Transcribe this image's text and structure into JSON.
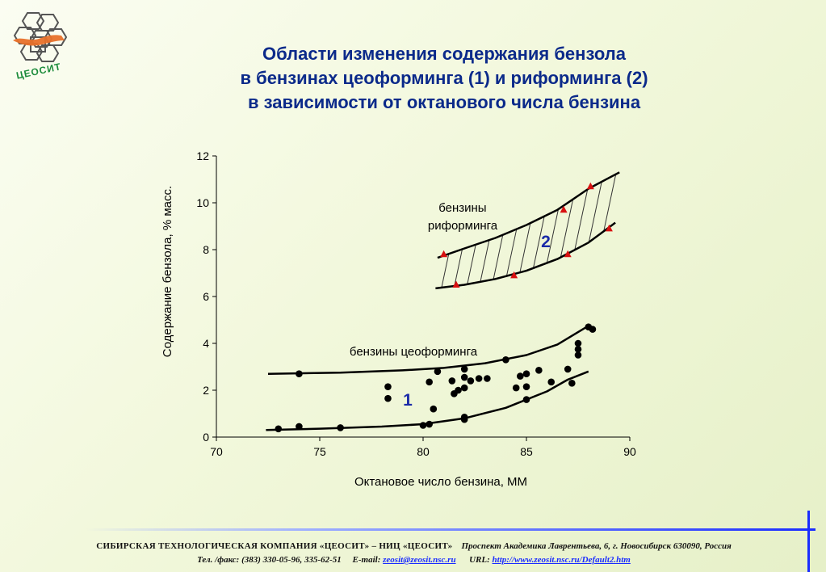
{
  "logo": {
    "text": "ЦЕОСИТ"
  },
  "title": {
    "line1": "Области изменения содержания бензола",
    "line2": "в бензинах цеоформинга (1) и риформинга (2)",
    "line3": "в зависимости от октанового числа  бензина"
  },
  "colors": {
    "title": "#0b2a8a",
    "region_label": "#1a2aa8",
    "triangle": "#d81010",
    "link": "#1a2cff"
  },
  "chart_data": {
    "type": "scatter",
    "xlabel": "Октановое число бензина, ММ",
    "ylabel": "Содержание бензола, % масс.",
    "xlim": [
      70,
      90
    ],
    "ylim": [
      0,
      12
    ],
    "xticks": [
      70,
      75,
      80,
      85,
      90
    ],
    "yticks": [
      0,
      2,
      4,
      6,
      8,
      10,
      12
    ],
    "grid": false,
    "annotations": {
      "reforming": "бензины\nриформинга",
      "zeoforming": "бензины цеоформинга",
      "region1": "1",
      "region2": "2"
    },
    "series": [
      {
        "marker": "circle",
        "points": [
          [
            73,
            0.35
          ],
          [
            74,
            0.45
          ],
          [
            74,
            2.7
          ],
          [
            76,
            0.4
          ],
          [
            78.3,
            2.15
          ],
          [
            78.3,
            1.65
          ],
          [
            80,
            0.5
          ],
          [
            80.3,
            0.55
          ],
          [
            80.3,
            2.35
          ],
          [
            80.5,
            1.2
          ],
          [
            80.7,
            2.8
          ],
          [
            81.4,
            2.4
          ],
          [
            81.5,
            1.85
          ],
          [
            81.7,
            2.0
          ],
          [
            82,
            2.1
          ],
          [
            82,
            2.55
          ],
          [
            82,
            2.9
          ],
          [
            82,
            0.75
          ],
          [
            82,
            0.85
          ],
          [
            82.3,
            2.4
          ],
          [
            82.7,
            2.5
          ],
          [
            83.1,
            2.5
          ],
          [
            84,
            3.3
          ],
          [
            84.5,
            2.1
          ],
          [
            84.7,
            2.6
          ],
          [
            85,
            2.7
          ],
          [
            85,
            2.15
          ],
          [
            85,
            1.6
          ],
          [
            85.6,
            2.85
          ],
          [
            86.2,
            2.35
          ],
          [
            87,
            2.9
          ],
          [
            87.2,
            2.3
          ],
          [
            87.5,
            4.0
          ],
          [
            87.5,
            3.75
          ],
          [
            87.5,
            3.5
          ],
          [
            88,
            4.7
          ],
          [
            88.2,
            4.6
          ]
        ]
      },
      {
        "marker": "triangle",
        "points": [
          [
            81,
            7.8
          ],
          [
            81.6,
            6.5
          ],
          [
            84.4,
            6.9
          ],
          [
            86.8,
            9.7
          ],
          [
            87,
            7.8
          ],
          [
            88.1,
            10.7
          ],
          [
            89,
            8.9
          ]
        ]
      }
    ],
    "curves": [
      {
        "band": "1-upper",
        "points": [
          [
            72.5,
            2.7
          ],
          [
            76,
            2.75
          ],
          [
            79,
            2.85
          ],
          [
            81,
            2.95
          ],
          [
            83,
            3.15
          ],
          [
            85,
            3.5
          ],
          [
            86.5,
            3.95
          ],
          [
            88,
            4.75
          ]
        ]
      },
      {
        "band": "1-lower",
        "points": [
          [
            72.4,
            0.3
          ],
          [
            75,
            0.36
          ],
          [
            78,
            0.45
          ],
          [
            80,
            0.55
          ],
          [
            82,
            0.8
          ],
          [
            84,
            1.25
          ],
          [
            86,
            1.95
          ],
          [
            87,
            2.45
          ],
          [
            88,
            2.8
          ]
        ]
      },
      {
        "band": "2-upper",
        "points": [
          [
            80.7,
            7.65
          ],
          [
            82,
            8.05
          ],
          [
            83.5,
            8.5
          ],
          [
            85,
            9.05
          ],
          [
            86.5,
            9.7
          ],
          [
            88,
            10.6
          ],
          [
            89.5,
            11.3
          ]
        ]
      },
      {
        "band": "2-lower",
        "points": [
          [
            80.6,
            6.35
          ],
          [
            82,
            6.5
          ],
          [
            83.5,
            6.75
          ],
          [
            85,
            7.1
          ],
          [
            86.5,
            7.6
          ],
          [
            88,
            8.3
          ],
          [
            89.3,
            9.15
          ]
        ]
      }
    ]
  },
  "footer": {
    "company": "СИБИРСКАЯ  ТЕХНОЛОГИЧЕСКАЯ  КОМПАНИЯ  «ЦЕОСИТ»  –  НИЦ  «ЦЕОСИТ»",
    "address": "Проспект Академика  Лаврентьева, 6,  г. Новосибирск 630090,  Россия",
    "phone": "Тел. /факс: (383) 330-05-96,  335-62-51",
    "email_label": "E-mail:",
    "email": "zeosit@zeosit.nsc.ru",
    "url_label": "URL:",
    "url": "http://www.zeosit.nsc.ru/Default2.htm"
  }
}
